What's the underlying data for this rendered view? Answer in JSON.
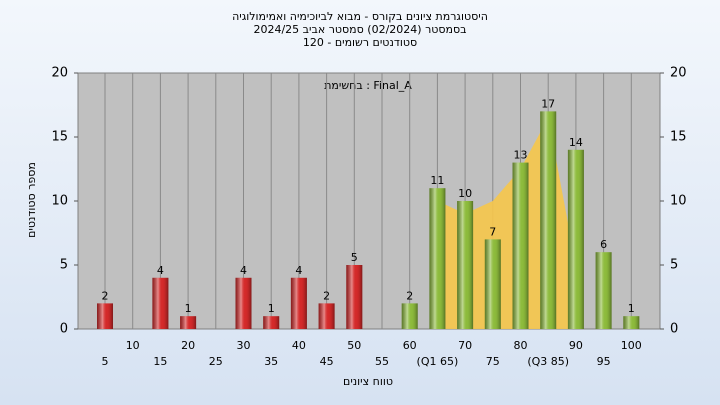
{
  "chart_data": {
    "type": "bar",
    "title": [
      "היסטוגרמת ציונים בקורס - מבוא לביוכימיה ואמימולוגיה",
      "בסמסטר  (02/2024)  סמסטר אביב 2024/25",
      "סטודנטים רשומים - 120"
    ],
    "annotation": "בחשימת : Final_A",
    "x_label": "טווח ציונים",
    "y_label": "מספר סטודנטים",
    "categories": [
      "5",
      "10",
      "15",
      "20",
      "25",
      "30",
      "35",
      "40",
      "45",
      "50",
      "55",
      "60",
      "(Q1 65)",
      "70",
      "75",
      "80",
      "(Q3 85)",
      "90",
      "95",
      "100"
    ],
    "values": [
      2,
      0,
      4,
      1,
      0,
      4,
      1,
      4,
      2,
      5,
      0,
      2,
      11,
      10,
      7,
      13,
      17,
      14,
      6,
      1
    ],
    "colors": [
      "#d42a2a",
      "#d42a2a",
      "#d42a2a",
      "#d42a2a",
      "#d42a2a",
      "#d42a2a",
      "#d42a2a",
      "#d42a2a",
      "#d42a2a",
      "#d42a2a",
      "#d42a2a",
      "#8dbb3c",
      "#8dbb3c",
      "#8dbb3c",
      "#8dbb3c",
      "#8dbb3c",
      "#8dbb3c",
      "#8dbb3c",
      "#8dbb3c",
      "#8dbb3c"
    ],
    "area": {
      "color": "#f6c64a",
      "values": [
        null,
        null,
        null,
        null,
        null,
        null,
        null,
        null,
        null,
        null,
        null,
        null,
        10,
        9,
        10,
        12.5,
        16.5,
        5,
        null,
        null
      ]
    },
    "ylim": [
      0,
      20
    ],
    "yticks": [
      0,
      5,
      10,
      15,
      20
    ],
    "y2lim": [
      0,
      20
    ],
    "y2ticks": [
      0,
      5,
      10,
      15,
      20
    ],
    "grid": true
  }
}
